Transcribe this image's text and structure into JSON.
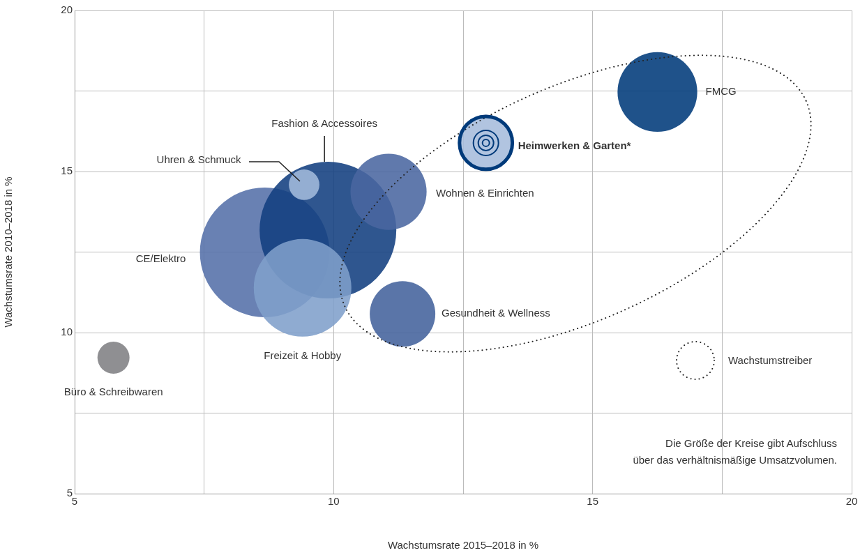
{
  "chart_data": {
    "type": "bubble",
    "xlabel": "Wachstumsrate 2015–2018 in %",
    "ylabel": "Wachstumsrate 2010–2018 in %",
    "series": [
      {
        "name": "Büro & Schreibwaren",
        "color": "#808083",
        "x": [
          5.75
        ],
        "values": [
          9.22
        ],
        "sizes": [
          0.055
        ]
      },
      {
        "name": "CE/Elektro",
        "color": "#5470a8",
        "x": [
          8.67
        ],
        "values": [
          12.49
        ],
        "sizes": [
          0.9
        ]
      },
      {
        "name": "Fashion & Accessoires",
        "color": "#123f80",
        "x": [
          9.89
        ],
        "values": [
          13.18
        ],
        "sizes": [
          1
        ]
      },
      {
        "name": "Uhren & Schmuck",
        "color": "#a3bbdc",
        "x": [
          9.43
        ],
        "values": [
          14.59
        ],
        "sizes": [
          0.05
        ]
      },
      {
        "name": "Freizeit & Hobby",
        "color": "#7f9fcb",
        "x": [
          9.4
        ],
        "values": [
          11.39
        ],
        "sizes": [
          0.51
        ]
      },
      {
        "name": "Wohnen & Einrichten",
        "color": "#4a67a0",
        "x": [
          11.06
        ],
        "values": [
          14.37
        ],
        "sizes": [
          0.31
        ]
      },
      {
        "name": "Gesundheit & Wellness",
        "color": "#43629c",
        "x": [
          11.33
        ],
        "values": [
          10.58
        ],
        "sizes": [
          0.23
        ]
      },
      {
        "name": "Heimwerken & Garten*",
        "color": "#a6bcdc",
        "x": [
          12.94
        ],
        "values": [
          15.89
        ],
        "sizes": [
          0.17
        ]
      },
      {
        "name": "FMCG",
        "color": "#003a7a",
        "x": [
          16.25
        ],
        "values": [
          17.47
        ],
        "sizes": [
          0.34
        ]
      }
    ],
    "xlim": [
      5,
      20
    ],
    "xticks": [
      5,
      {
        "value": 7.5,
        "label": null
      },
      10,
      {
        "value": 12.5,
        "label": null
      },
      15,
      {
        "value": 17.5,
        "label": null
      },
      20
    ],
    "ylim": [
      5,
      20
    ],
    "yticks": [
      5,
      {
        "value": 7.5,
        "label": null
      },
      10,
      {
        "value": 12.5,
        "label": null
      },
      15,
      {
        "value": 17.5,
        "label": null
      },
      20
    ],
    "grid": true,
    "annotations": [
      "Wachstumstreiber",
      "Die Größe der Kreise gibt Aufschluss\nüber das verhältnismäßige Umsatzvolumen."
    ]
  }
}
